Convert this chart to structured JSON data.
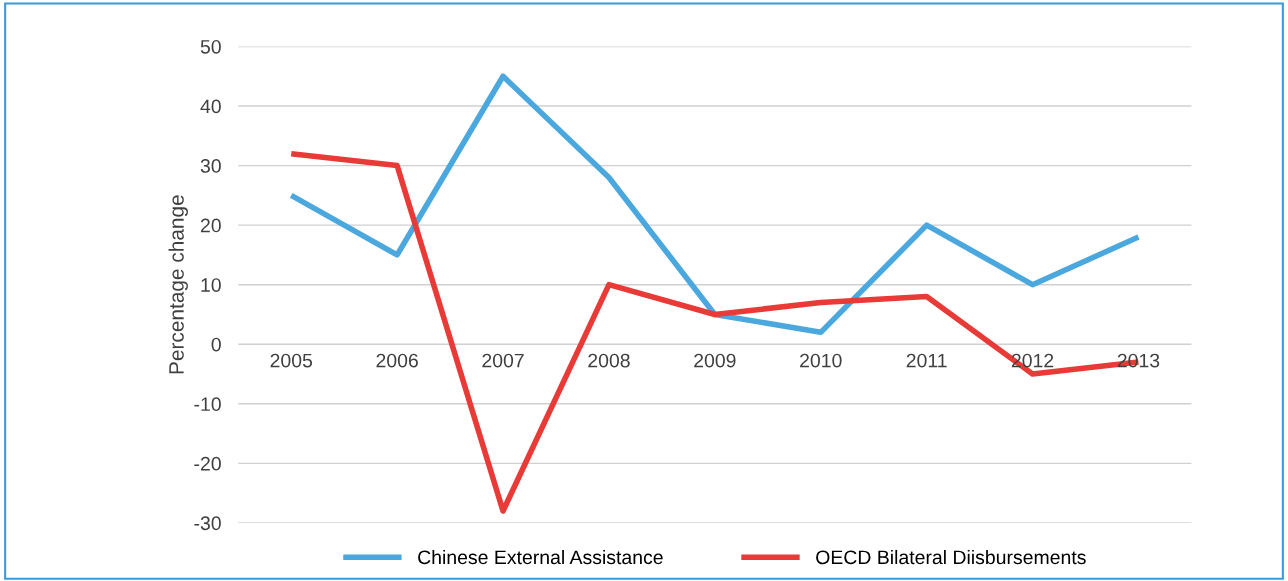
{
  "chart_data": {
    "type": "line",
    "categories": [
      "2005",
      "2006",
      "2007",
      "2008",
      "2009",
      "2010",
      "2011",
      "2012",
      "2013"
    ],
    "series": [
      {
        "name": "Chinese External Assistance",
        "color": "#4ba8de",
        "values": [
          25,
          15,
          45,
          28,
          5,
          2,
          20,
          10,
          18
        ]
      },
      {
        "name": "OECD Bilateral Diisbursements",
        "color": "#e83a36",
        "values": [
          32,
          30,
          -28,
          10,
          5,
          7,
          8,
          -5,
          -3
        ]
      }
    ],
    "ylabel": "Percentage change",
    "ylim": [
      -30,
      50
    ],
    "yticks": [
      -30,
      -20,
      -10,
      0,
      10,
      20,
      30,
      40,
      50
    ],
    "grid": "y",
    "legend": "bottom",
    "marker": "none",
    "line_style": "solid"
  }
}
